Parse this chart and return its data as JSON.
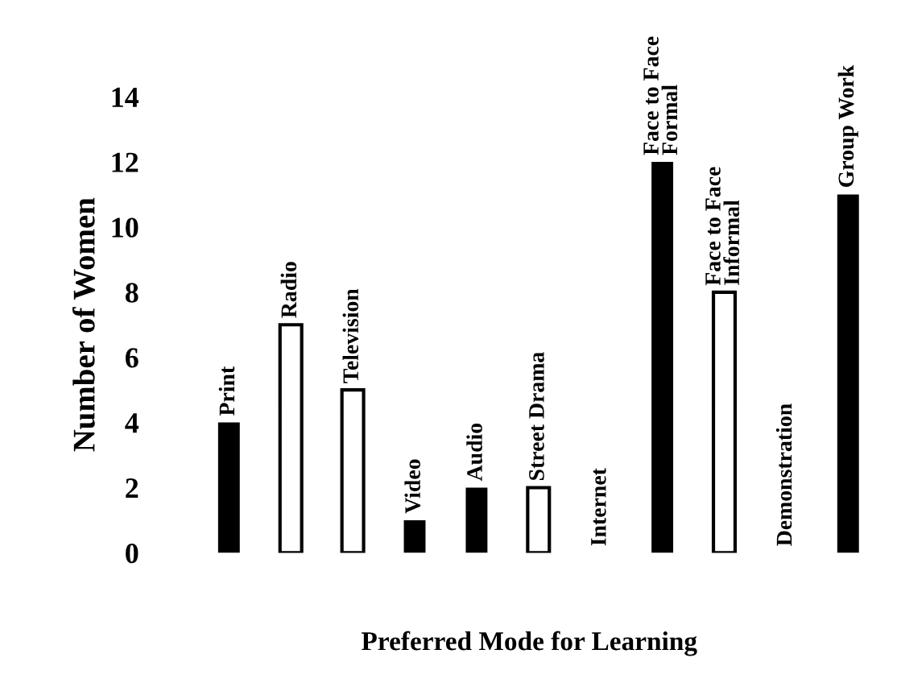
{
  "chart_data": {
    "type": "bar",
    "xlabel": "Preferred Mode for Learning",
    "ylabel": "Number of Women",
    "categories": [
      "Print",
      "Radio",
      "Television",
      "Video",
      "Audio",
      "Street Drama",
      "Internet",
      "Face to Face\nFormal",
      "Face to Face\nInformal",
      "Demonstration",
      "Group Work"
    ],
    "values": [
      4,
      7,
      5,
      1,
      2,
      2,
      0,
      12,
      8,
      0,
      11
    ],
    "colors": [
      "#000000",
      "#ffffff",
      "#ffffff",
      "#000000",
      "#000000",
      "#ffffff",
      "#000000",
      "#000000",
      "#ffffff",
      "#000000",
      "#000000"
    ],
    "ylim": [
      0,
      14
    ],
    "yticks": [
      0,
      2,
      4,
      6,
      8,
      10,
      12,
      14
    ],
    "grid": false,
    "legend": false
  }
}
